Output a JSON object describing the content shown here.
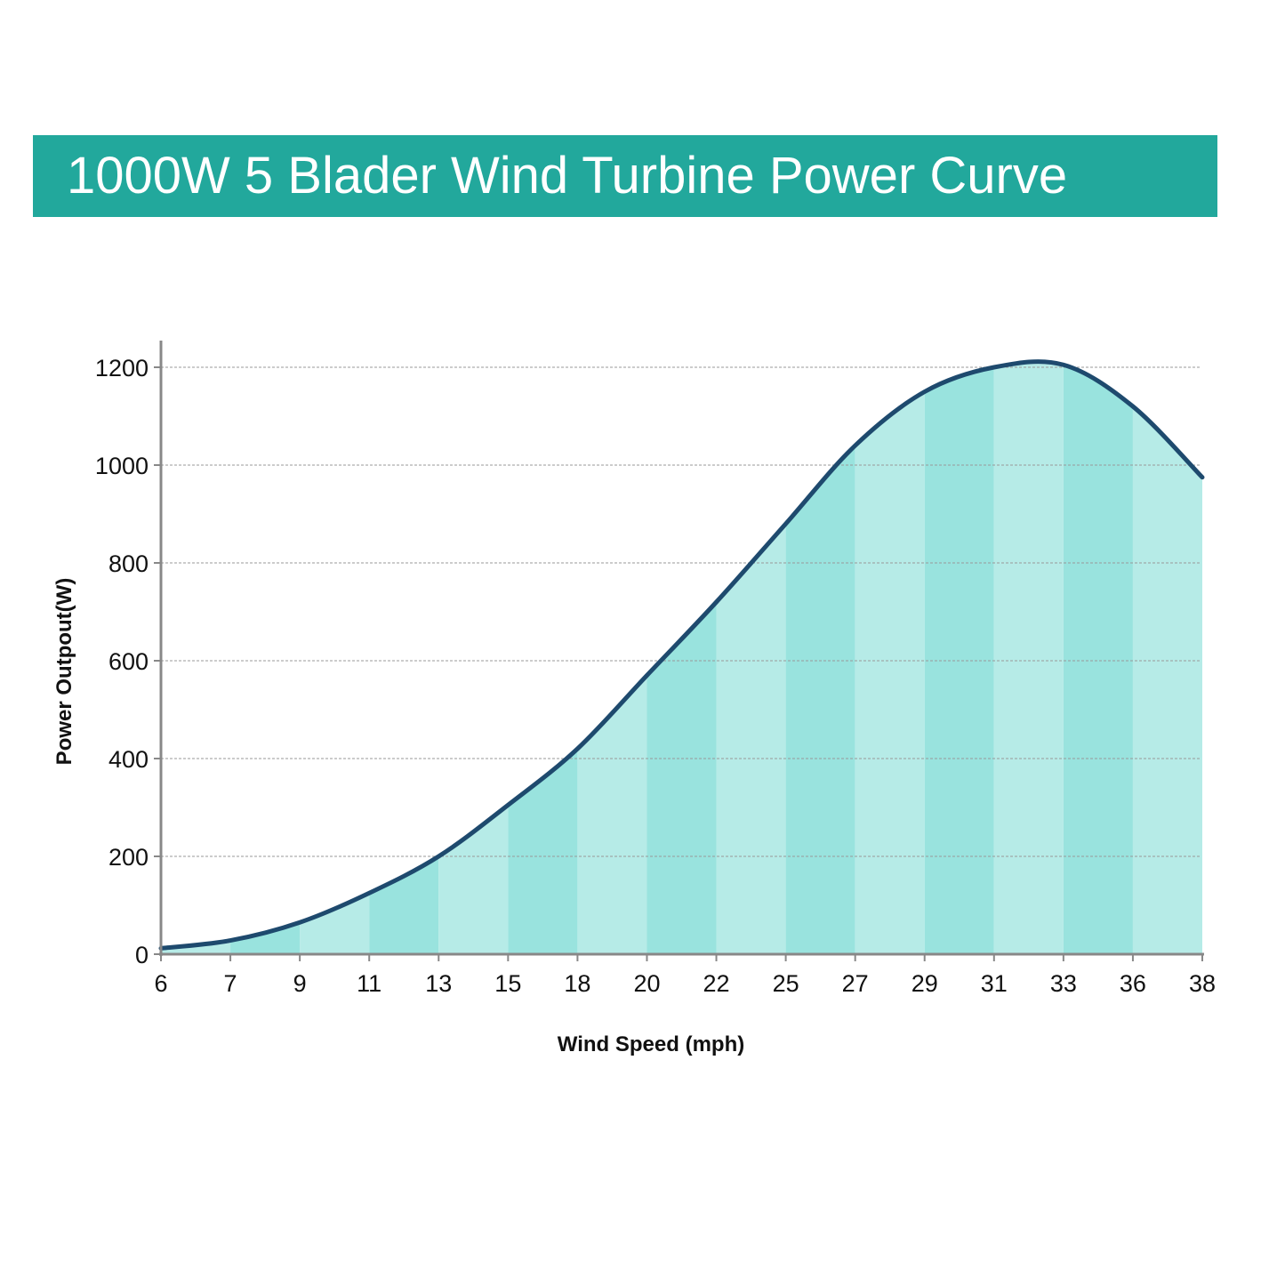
{
  "title": "1000W 5 Blader Wind Turbine Power Curve",
  "colors": {
    "banner": "#22a89c",
    "banner_text": "#ffffff",
    "fill_light": "#b6ebe7",
    "fill_dark": "#99e3de",
    "curve": "#1e4a6e",
    "grid": "#999999",
    "axis": "#888888"
  },
  "chart_data": {
    "type": "area",
    "xlabel": "Wind Speed (mph)",
    "ylabel": "Power Outpout(W)",
    "categories": [
      "6",
      "7",
      "9",
      "11",
      "13",
      "15",
      "18",
      "20",
      "22",
      "25",
      "27",
      "29",
      "31",
      "33",
      "36",
      "38"
    ],
    "values": [
      12,
      28,
      65,
      125,
      200,
      305,
      420,
      570,
      720,
      880,
      1040,
      1150,
      1200,
      1205,
      1120,
      975
    ],
    "yticks": [
      0,
      200,
      400,
      600,
      800,
      1000,
      1200
    ],
    "ylim": [
      0,
      1250
    ],
    "grid": "horizontal dashed"
  }
}
